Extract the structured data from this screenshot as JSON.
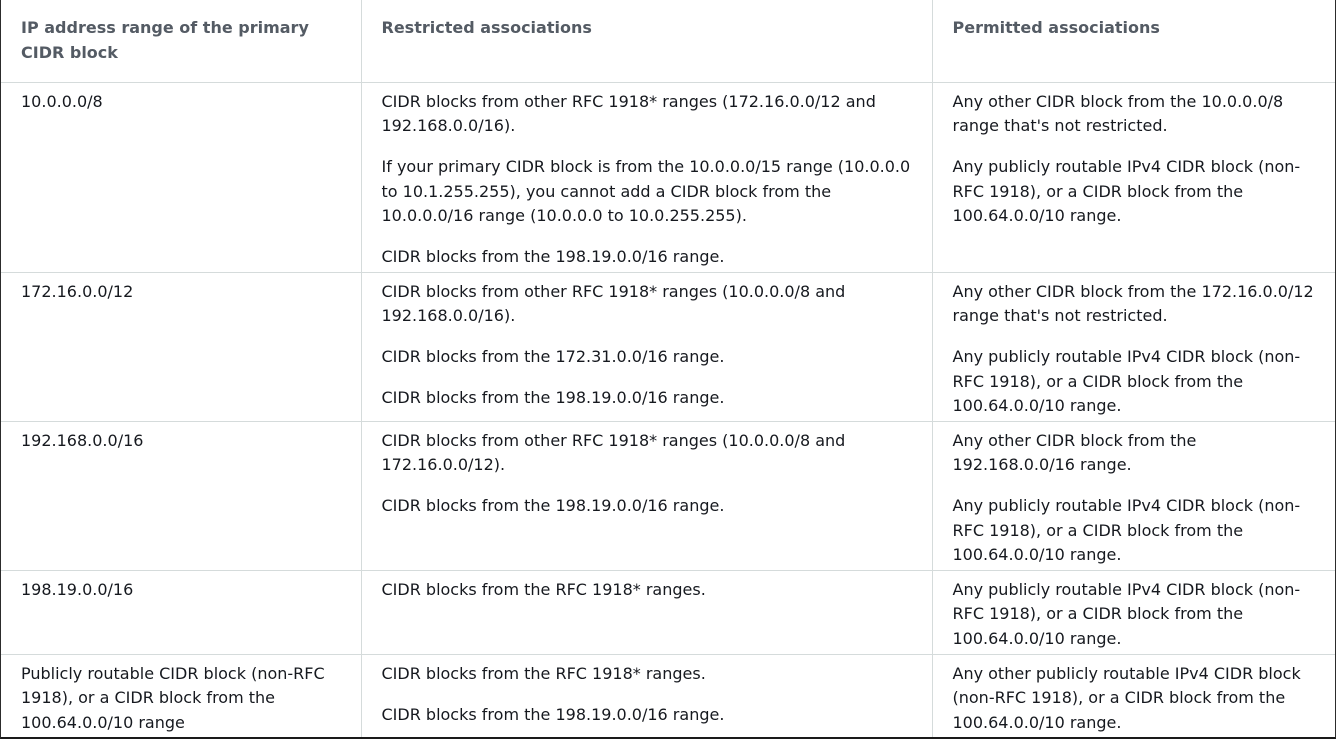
{
  "table": {
    "headers": [
      "IP address range of the primary CIDR block",
      "Restricted associations",
      "Permitted associations"
    ],
    "rows": [
      {
        "range": "10.0.0.0/8",
        "restricted": [
          "CIDR blocks from other RFC 1918* ranges (172.16.0.0/12 and 192.168.0.0/16).",
          "If your primary CIDR block is from the 10.0.0.0/15 range (10.0.0.0 to 10.1.255.255), you cannot add a CIDR block from the 10.0.0.0/16 range (10.0.0.0 to 10.0.255.255).",
          "CIDR blocks from the 198.19.0.0/16 range."
        ],
        "permitted": [
          "Any other CIDR block from the 10.0.0.0/8 range that's not restricted.",
          "Any publicly routable IPv4 CIDR block (non-RFC 1918), or a CIDR block from the 100.64.0.0/10 range."
        ]
      },
      {
        "range": "172.16.0.0/12",
        "restricted": [
          "CIDR blocks from other RFC 1918* ranges (10.0.0.0/8 and 192.168.0.0/16).",
          "CIDR blocks from the 172.31.0.0/16 range.",
          "CIDR blocks from the 198.19.0.0/16 range."
        ],
        "permitted": [
          "Any other CIDR block from the 172.16.0.0/12 range that's not restricted.",
          "Any publicly routable IPv4 CIDR block (non-RFC 1918), or a CIDR block from the 100.64.0.0/10 range."
        ]
      },
      {
        "range": "192.168.0.0/16",
        "restricted": [
          "CIDR blocks from other RFC 1918* ranges (10.0.0.0/8 and 172.16.0.0/12).",
          "CIDR blocks from the 198.19.0.0/16 range."
        ],
        "permitted": [
          "Any other CIDR block from the 192.168.0.0/16 range.",
          "Any publicly routable IPv4 CIDR block (non-RFC 1918), or a CIDR block from the 100.64.0.0/10 range."
        ]
      },
      {
        "range": "198.19.0.0/16",
        "restricted": [
          "CIDR blocks from the RFC 1918* ranges."
        ],
        "permitted": [
          "Any publicly routable IPv4 CIDR block (non-RFC 1918), or a CIDR block from the 100.64.0.0/10 range."
        ]
      },
      {
        "range": "Publicly routable CIDR block (non-RFC 1918), or a CIDR block from the 100.64.0.0/10 range",
        "restricted": [
          "CIDR blocks from the RFC 1918* ranges.",
          "CIDR blocks from the 198.19.0.0/16 range."
        ],
        "permitted": [
          "Any other publicly routable IPv4 CIDR block (non-RFC 1918), or a CIDR block from the 100.64.0.0/10 range."
        ]
      }
    ]
  }
}
